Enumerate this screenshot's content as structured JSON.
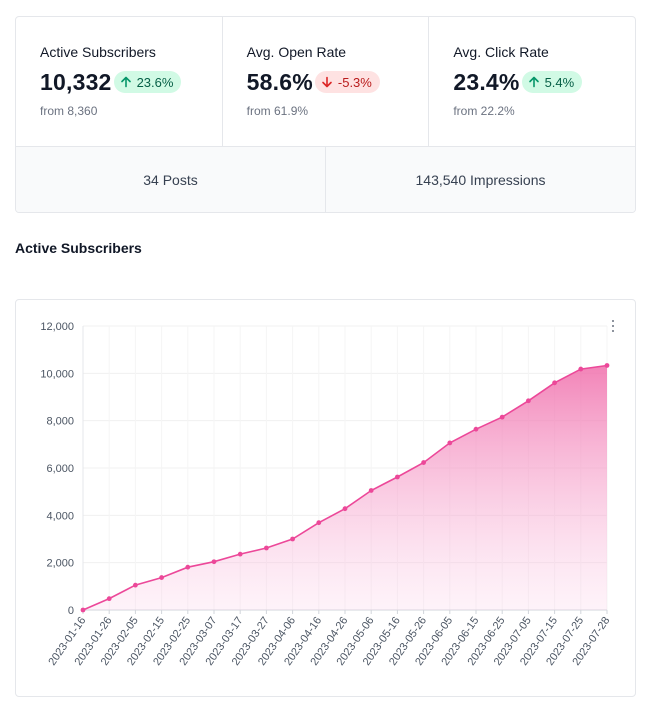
{
  "stats": [
    {
      "label": "Active Subscribers",
      "value": "10,332",
      "change": "23.6%",
      "direction": "up",
      "from": "from 8,360"
    },
    {
      "label": "Avg. Open Rate",
      "value": "58.6%",
      "change": "-5.3%",
      "direction": "down",
      "from": "from 61.9%"
    },
    {
      "label": "Avg. Click Rate",
      "value": "23.4%",
      "change": "5.4%",
      "direction": "up",
      "from": "from 22.2%"
    }
  ],
  "totals": {
    "posts": "34 Posts",
    "impressions": "143,540 Impressions"
  },
  "section_title": "Active Subscribers",
  "colors": {
    "line": "#ec4899",
    "fill_top": "#f06eab",
    "up_bg": "#d1fae5",
    "down_bg": "#fee2e2"
  },
  "chart_data": {
    "type": "area",
    "title": "Active Subscribers",
    "xlabel": "",
    "ylabel": "",
    "ylim": [
      0,
      12000
    ],
    "yticks": [
      "0",
      "2,000",
      "4,000",
      "6,000",
      "8,000",
      "10,000",
      "12,000"
    ],
    "ytick_values": [
      0,
      2000,
      4000,
      6000,
      8000,
      10000,
      12000
    ],
    "xticks": [
      "2023-01-16",
      "2023-01-26",
      "2023-02-05",
      "2023-02-15",
      "2023-02-25",
      "2023-03-07",
      "2023-03-17",
      "2023-03-27",
      "2023-04-06",
      "2023-04-16",
      "2023-04-26",
      "2023-05-06",
      "2023-05-16",
      "2023-05-26",
      "2023-06-05",
      "2023-06-15",
      "2023-06-25",
      "2023-07-05",
      "2023-07-15",
      "2023-07-25",
      "2023-07-28"
    ],
    "series": [
      {
        "name": "Active Subscribers",
        "values": [
          0,
          480,
          1050,
          1370,
          1810,
          2040,
          2360,
          2620,
          3000,
          3690,
          4280,
          5050,
          5620,
          6230,
          7060,
          7640,
          8150,
          8840,
          9600,
          10180,
          10332
        ]
      }
    ]
  }
}
